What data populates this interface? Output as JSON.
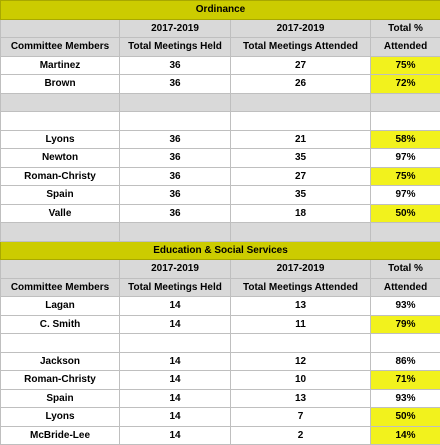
{
  "sections": [
    {
      "title": "Ordinance",
      "header_rows": [
        [
          null,
          "2017-2019",
          "2017-2019",
          "Total %"
        ],
        [
          "Committee Members",
          "Total Meetings Held",
          "Total Meetings Attended",
          "Attended"
        ]
      ],
      "rows": [
        {
          "cells": [
            "Martinez",
            "36",
            "27",
            "75%"
          ],
          "highlight": true
        },
        {
          "cells": [
            "Brown",
            "36",
            "26",
            "72%"
          ],
          "highlight": true
        },
        {
          "spacer": "gray"
        },
        {
          "spacer": "white"
        },
        {
          "cells": [
            "Lyons",
            "36",
            "21",
            "58%"
          ],
          "highlight": true
        },
        {
          "cells": [
            "Newton",
            "36",
            "35",
            "97%"
          ],
          "highlight": false
        },
        {
          "cells": [
            "Roman-Christy",
            "36",
            "27",
            "75%"
          ],
          "highlight": true
        },
        {
          "cells": [
            "Spain",
            "36",
            "35",
            "97%"
          ],
          "highlight": false
        },
        {
          "cells": [
            "Valle",
            "36",
            "18",
            "50%"
          ],
          "highlight": true
        },
        {
          "spacer": "gray"
        }
      ]
    },
    {
      "title": "Education & Social Services",
      "header_rows": [
        [
          null,
          "2017-2019",
          "2017-2019",
          "Total %"
        ],
        [
          "Committee Members",
          "Total Meetings Held",
          "Total Meetings Attended",
          "Attended"
        ]
      ],
      "rows": [
        {
          "cells": [
            "Lagan",
            "14",
            "13",
            "93%"
          ],
          "highlight": false
        },
        {
          "cells": [
            "C. Smith",
            "14",
            "11",
            "79%"
          ],
          "highlight": true
        },
        {
          "spacer": "white"
        },
        {
          "cells": [
            "Jackson",
            "14",
            "12",
            "86%"
          ],
          "highlight": false
        },
        {
          "cells": [
            "Roman-Christy",
            "14",
            "10",
            "71%"
          ],
          "highlight": true
        },
        {
          "cells": [
            "Spain",
            "14",
            "13",
            "93%"
          ],
          "highlight": false
        },
        {
          "cells": [
            "Lyons",
            "14",
            "7",
            "50%"
          ],
          "highlight": true
        },
        {
          "cells": [
            "McBride-Lee",
            "14",
            "2",
            "14%"
          ],
          "highlight": true
        }
      ]
    }
  ]
}
